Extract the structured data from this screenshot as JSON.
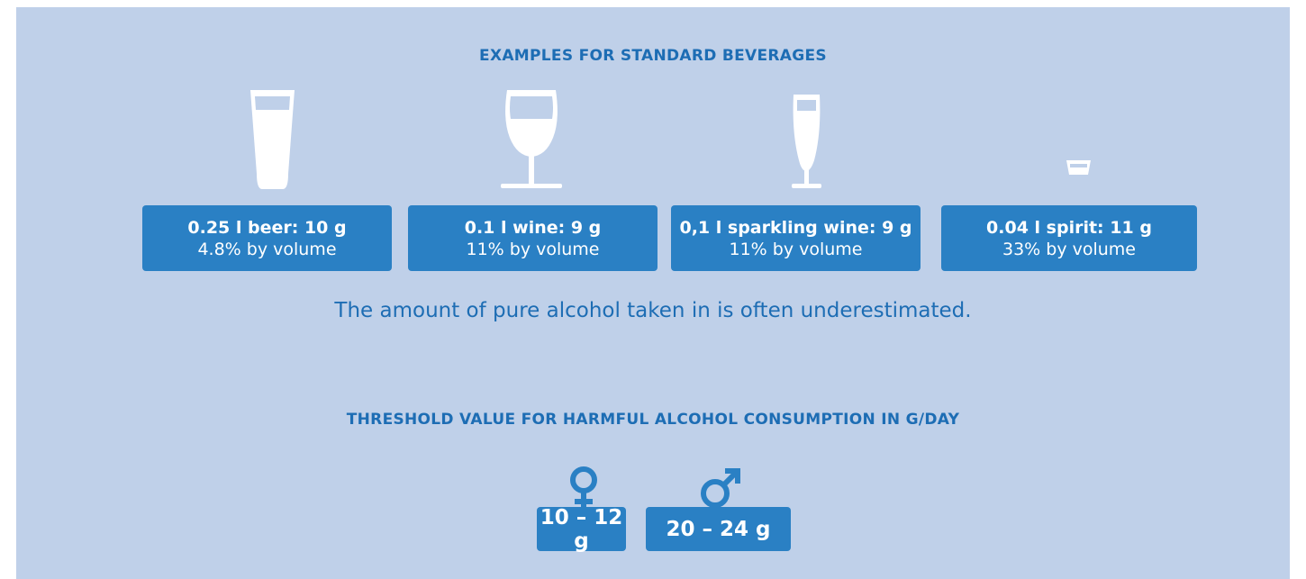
{
  "beverages_section": {
    "title": "EXAMPLES FOR STANDARD BEVERAGES",
    "items": [
      {
        "label": "0.25 l beer: 10 g",
        "detail": "4.8% by volume"
      },
      {
        "label": "0.1 l wine: 9 g",
        "detail": "11% by volume"
      },
      {
        "label": "0,1 l sparkling wine: 9 g",
        "detail": "11% by volume"
      },
      {
        "label": "0.04 l spirit: 11 g",
        "detail": "33% by volume"
      }
    ],
    "note": "The amount of pure alcohol taken in is often underestimated."
  },
  "threshold_section": {
    "title": "THRESHOLD VALUE FOR HARMFUL ALCOHOL CONSUMPTION IN G/DAY",
    "female": "10 – 12 g",
    "male": "20 – 24 g"
  }
}
